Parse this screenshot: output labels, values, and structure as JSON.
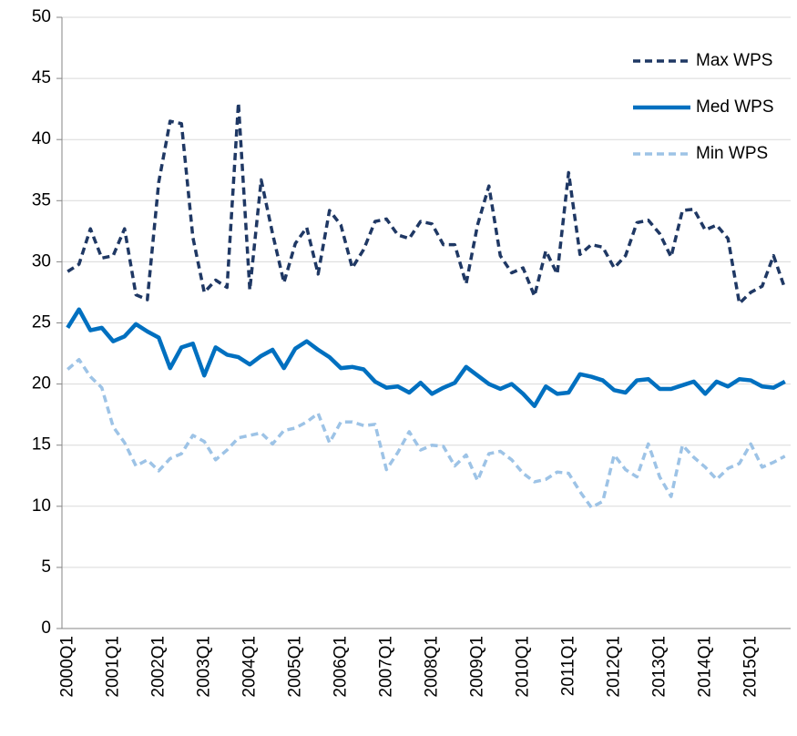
{
  "chart_data": {
    "type": "line",
    "categories": [
      "2000Q1",
      null,
      null,
      null,
      "2001Q1",
      null,
      null,
      null,
      "2002Q1",
      null,
      null,
      null,
      "2003Q1",
      null,
      null,
      null,
      "2004Q1",
      null,
      null,
      null,
      "2005Q1",
      null,
      null,
      null,
      "2006Q1",
      null,
      null,
      null,
      "2007Q1",
      null,
      null,
      null,
      "2008Q1",
      null,
      null,
      null,
      "2009Q1",
      null,
      null,
      null,
      "2010Q1",
      null,
      null,
      null,
      "2011Q1",
      null,
      null,
      null,
      "2012Q1",
      null,
      null,
      null,
      "2013Q1",
      null,
      null,
      null,
      "2014Q1",
      null,
      null,
      null,
      "2015Q1",
      null,
      null,
      null
    ],
    "series": [
      {
        "name": "Max WPS",
        "color": "#1f3864",
        "dashed": true,
        "values": [
          29.2,
          29.8,
          32.7,
          30.3,
          30.5,
          32.7,
          27.3,
          26.9,
          36.5,
          41.5,
          41.3,
          32,
          27.5,
          28.5,
          27.9,
          43,
          27.7,
          36.7,
          32.3,
          28.3,
          31.5,
          32.8,
          29,
          34.2,
          33,
          29.5,
          31,
          33.3,
          33.5,
          32.2,
          31.9,
          33.3,
          33.1,
          31.4,
          31.4,
          28.2,
          33,
          36.2,
          30.5,
          29.1,
          29.5,
          27.2,
          30.9,
          29,
          37.3,
          30.6,
          31.4,
          31.2,
          29.5,
          30.5,
          33.2,
          33.4,
          32.3,
          30.4,
          34.2,
          34.3,
          32.6,
          33,
          31.9,
          26.6,
          27.5,
          28,
          30.5,
          27.8
        ]
      },
      {
        "name": "Med WPS",
        "color": "#0070c0",
        "dashed": false,
        "values": [
          24.6,
          26.1,
          24.4,
          24.6,
          23.5,
          23.9,
          24.9,
          24.3,
          23.8,
          21.3,
          23,
          23.3,
          20.7,
          23,
          22.4,
          22.2,
          21.6,
          22.3,
          22.8,
          21.3,
          22.9,
          23.5,
          22.8,
          22.2,
          21.3,
          21.4,
          21.2,
          20.2,
          19.7,
          19.8,
          19.3,
          20.1,
          19.2,
          19.7,
          20.1,
          21.4,
          20.7,
          20,
          19.6,
          20,
          19.2,
          18.2,
          19.8,
          19.2,
          19.3,
          20.8,
          20.6,
          20.3,
          19.5,
          19.3,
          20.3,
          20.4,
          19.6,
          19.6,
          19.9,
          20.2,
          19.2,
          20.2,
          19.8,
          20.4,
          20.3,
          19.8,
          19.7,
          20.2
        ]
      },
      {
        "name": "Min WPS",
        "color": "#9dc3e6",
        "dashed": true,
        "values": [
          21.2,
          22,
          20.6,
          19.7,
          16.5,
          15.2,
          13.3,
          13.8,
          12.9,
          13.9,
          14.3,
          15.8,
          15.3,
          13.8,
          14.6,
          15.6,
          15.8,
          16,
          15.1,
          16.2,
          16.4,
          16.9,
          17.6,
          15.2,
          16.9,
          16.9,
          16.6,
          16.7,
          13,
          14.4,
          16.1,
          14.6,
          15,
          14.9,
          13.3,
          14.2,
          12.1,
          14.3,
          14.5,
          13.8,
          12.7,
          12,
          12.2,
          12.8,
          12.7,
          11.2,
          9.9,
          10.4,
          14.2,
          13,
          12.4,
          15.1,
          12.4,
          10.8,
          15,
          14,
          13.2,
          12.2,
          13.1,
          13.5,
          15.1,
          13.2,
          13.6,
          14.1
        ]
      }
    ],
    "ylim": [
      0,
      50
    ],
    "yticks": [
      0,
      5,
      10,
      15,
      20,
      25,
      30,
      35,
      40,
      45,
      50
    ],
    "grid": true,
    "legend": "upper right"
  }
}
